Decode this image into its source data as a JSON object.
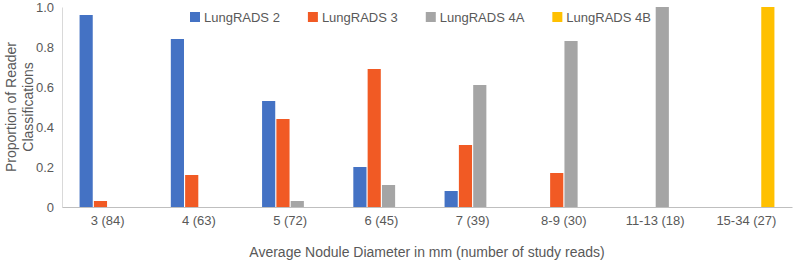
{
  "chart_data": {
    "type": "bar",
    "xlabel": "Average Nodule Diameter in mm (number of study reads)",
    "ylabel": "Proportion of Reader Classifications",
    "categories": [
      "3 (84)",
      "4 (63)",
      "5 (72)",
      "6 (45)",
      "7 (39)",
      "8-9 (30)",
      "11-13 (18)",
      "15-34 (27)"
    ],
    "series": [
      {
        "name": "LungRADS 2",
        "color": "#4472c4",
        "values": [
          0.96,
          0.84,
          0.53,
          0.2,
          0.08,
          0,
          0,
          0
        ]
      },
      {
        "name": "LungRADS 3",
        "color": "#f15a24",
        "values": [
          0.03,
          0.16,
          0.44,
          0.69,
          0.31,
          0.17,
          0,
          0
        ]
      },
      {
        "name": "LungRADS 4A",
        "color": "#a5a5a5",
        "values": [
          0,
          0,
          0.03,
          0.11,
          0.61,
          0.83,
          1,
          0
        ]
      },
      {
        "name": "LungRADS 4B",
        "color": "#ffc000",
        "values": [
          0,
          0,
          0,
          0,
          0,
          0,
          0,
          1
        ]
      }
    ],
    "ylim": [
      0,
      1
    ],
    "yticks": [
      0,
      0.2,
      0.4,
      0.6,
      0.8,
      {
        "value": 1,
        "label": "1.0"
      }
    ],
    "grid": false,
    "legend": "top"
  }
}
